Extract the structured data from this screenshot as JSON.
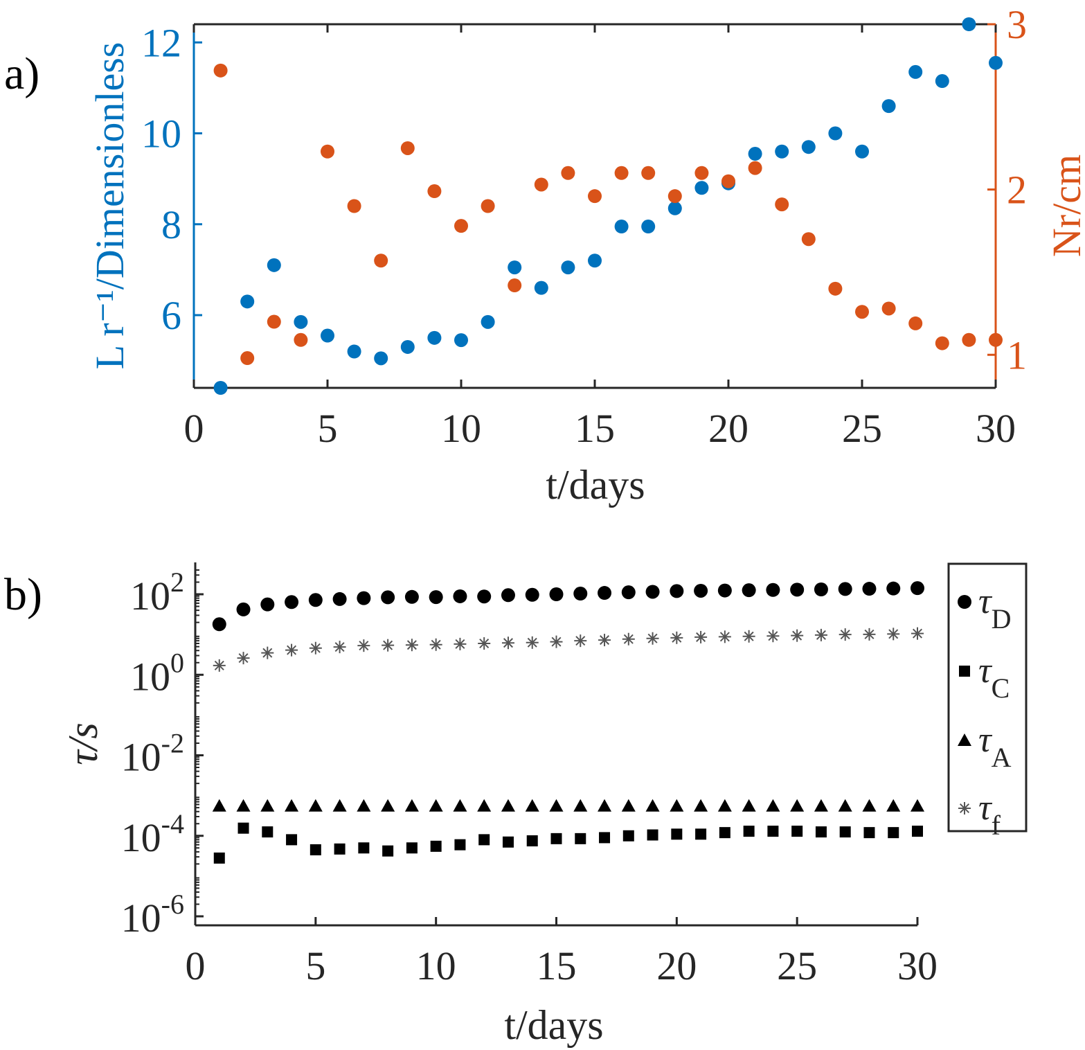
{
  "panels": {
    "a_label": "a)",
    "b_label": "b)"
  },
  "colors": {
    "blue": "#0072BD",
    "orange": "#D95319",
    "black": "#000000",
    "gray": "#555555"
  },
  "chart_data": [
    {
      "type": "scatter",
      "panel": "a)",
      "xlabel": "t/days",
      "ylabel_left": "L r⁻¹/Dimensionless",
      "ylabel_right": "Nr/cm",
      "xlim": [
        0,
        30
      ],
      "ylim_left": [
        4.4,
        12.4
      ],
      "ylim_right": [
        0.8,
        3
      ],
      "xticks": [
        0,
        5,
        10,
        15,
        20,
        25,
        30
      ],
      "yticks_left": [
        6,
        8,
        10,
        12
      ],
      "yticks_right": [
        1,
        2,
        3
      ],
      "grid": false,
      "series": [
        {
          "axis": "left",
          "color": "#0072BD",
          "x": [
            1,
            2,
            3,
            4,
            5,
            6,
            7,
            8,
            9,
            10,
            11,
            12,
            13,
            14,
            15,
            16,
            17,
            18,
            19,
            20,
            21,
            22,
            23,
            24,
            25,
            26,
            27,
            28,
            29,
            30
          ],
          "values": [
            4.4,
            6.3,
            7.1,
            5.85,
            5.55,
            5.2,
            5.05,
            5.3,
            5.5,
            5.45,
            5.85,
            7.05,
            6.6,
            7.05,
            7.2,
            7.95,
            7.95,
            8.35,
            8.8,
            8.9,
            9.55,
            9.6,
            9.7,
            10.0,
            9.6,
            10.6,
            11.35,
            11.15,
            12.4,
            11.55
          ]
        },
        {
          "axis": "right",
          "color": "#D95319",
          "x": [
            1,
            2,
            3,
            4,
            5,
            6,
            7,
            8,
            9,
            10,
            11,
            12,
            13,
            14,
            15,
            16,
            17,
            18,
            19,
            20,
            21,
            22,
            23,
            24,
            25,
            26,
            27,
            28,
            29,
            30
          ],
          "values": [
            2.72,
            0.98,
            1.2,
            1.09,
            2.23,
            1.9,
            1.57,
            2.25,
            1.99,
            1.78,
            1.9,
            1.42,
            2.03,
            2.1,
            1.96,
            2.1,
            2.1,
            1.96,
            2.1,
            2.05,
            2.13,
            1.91,
            1.7,
            1.4,
            1.26,
            1.28,
            1.19,
            1.07,
            1.09,
            1.09
          ]
        }
      ]
    },
    {
      "type": "scatter",
      "panel": "b)",
      "xlabel": "t/days",
      "ylabel": "τ/s",
      "yscale": "log",
      "xlim": [
        0,
        30
      ],
      "ylim": [
        1e-06,
        400
      ],
      "xticks": [
        0,
        5,
        10,
        15,
        20,
        25,
        30
      ],
      "yticks": [
        {
          "value": 1e-06,
          "base": "10",
          "exp": "-6"
        },
        {
          "value": 0.0001,
          "base": "10",
          "exp": "-4"
        },
        {
          "value": 0.01,
          "base": "10",
          "exp": "-2"
        },
        {
          "value": 1,
          "base": "10",
          "exp": "0"
        },
        {
          "value": 100,
          "base": "10",
          "exp": "2"
        }
      ],
      "legend_position": "right",
      "grid": false,
      "series": [
        {
          "name": "τ",
          "subscript": "D",
          "marker": "circle",
          "x": [
            1,
            2,
            3,
            4,
            5,
            6,
            7,
            8,
            9,
            10,
            11,
            12,
            13,
            14,
            15,
            16,
            17,
            18,
            19,
            20,
            21,
            22,
            23,
            24,
            25,
            26,
            27,
            28,
            29,
            30
          ],
          "values": [
            18,
            42,
            56,
            64,
            72,
            76,
            80,
            84,
            86,
            85,
            89,
            88,
            95,
            97,
            100,
            104,
            108,
            112,
            115,
            120,
            122,
            124,
            126,
            128,
            130,
            132,
            135,
            137,
            139,
            142
          ]
        },
        {
          "name": "τ",
          "subscript": "C",
          "marker": "square",
          "x": [
            1,
            2,
            3,
            4,
            5,
            6,
            7,
            8,
            9,
            10,
            11,
            12,
            13,
            14,
            15,
            16,
            17,
            18,
            19,
            20,
            21,
            22,
            23,
            24,
            25,
            26,
            27,
            28,
            29,
            30
          ],
          "values": [
            2.8e-05,
            0.000155,
            0.000125,
            8e-05,
            4.5e-05,
            4.7e-05,
            5e-05,
            4.2e-05,
            5e-05,
            5.5e-05,
            6e-05,
            8e-05,
            7e-05,
            7.5e-05,
            8.5e-05,
            8.5e-05,
            9e-05,
            0.0001,
            0.000105,
            0.00011,
            0.00011,
            0.00012,
            0.00013,
            0.00013,
            0.00013,
            0.000125,
            0.000125,
            0.00012,
            0.00012,
            0.00013
          ]
        },
        {
          "name": "τ",
          "subscript": "A",
          "marker": "triangle",
          "x": [
            1,
            2,
            3,
            4,
            5,
            6,
            7,
            8,
            9,
            10,
            11,
            12,
            13,
            14,
            15,
            16,
            17,
            18,
            19,
            20,
            21,
            22,
            23,
            24,
            25,
            26,
            27,
            28,
            29,
            30
          ],
          "values": [
            0.00055,
            0.00055,
            0.00055,
            0.00055,
            0.00055,
            0.00055,
            0.00055,
            0.00055,
            0.00055,
            0.00055,
            0.00055,
            0.00055,
            0.00055,
            0.00055,
            0.00055,
            0.00055,
            0.00055,
            0.00055,
            0.00055,
            0.00055,
            0.00055,
            0.00055,
            0.00055,
            0.00055,
            0.00055,
            0.00055,
            0.00055,
            0.00055,
            0.00055,
            0.00055
          ]
        },
        {
          "name": "τ",
          "subscript": "f",
          "marker": "asterisk",
          "x": [
            1,
            2,
            3,
            4,
            5,
            6,
            7,
            8,
            9,
            10,
            11,
            12,
            13,
            14,
            15,
            16,
            17,
            18,
            19,
            20,
            21,
            22,
            23,
            24,
            25,
            26,
            27,
            28,
            29,
            30
          ],
          "values": [
            1.7,
            2.6,
            3.5,
            4.1,
            4.6,
            4.9,
            5.3,
            5.4,
            5.5,
            5.6,
            5.8,
            6.0,
            6.2,
            6.3,
            6.6,
            7.0,
            7.3,
            7.7,
            8.0,
            8.3,
            8.6,
            8.8,
            9.0,
            9.2,
            9.4,
            9.7,
            10.0,
            10.1,
            10.3,
            10.6
          ]
        }
      ]
    }
  ]
}
